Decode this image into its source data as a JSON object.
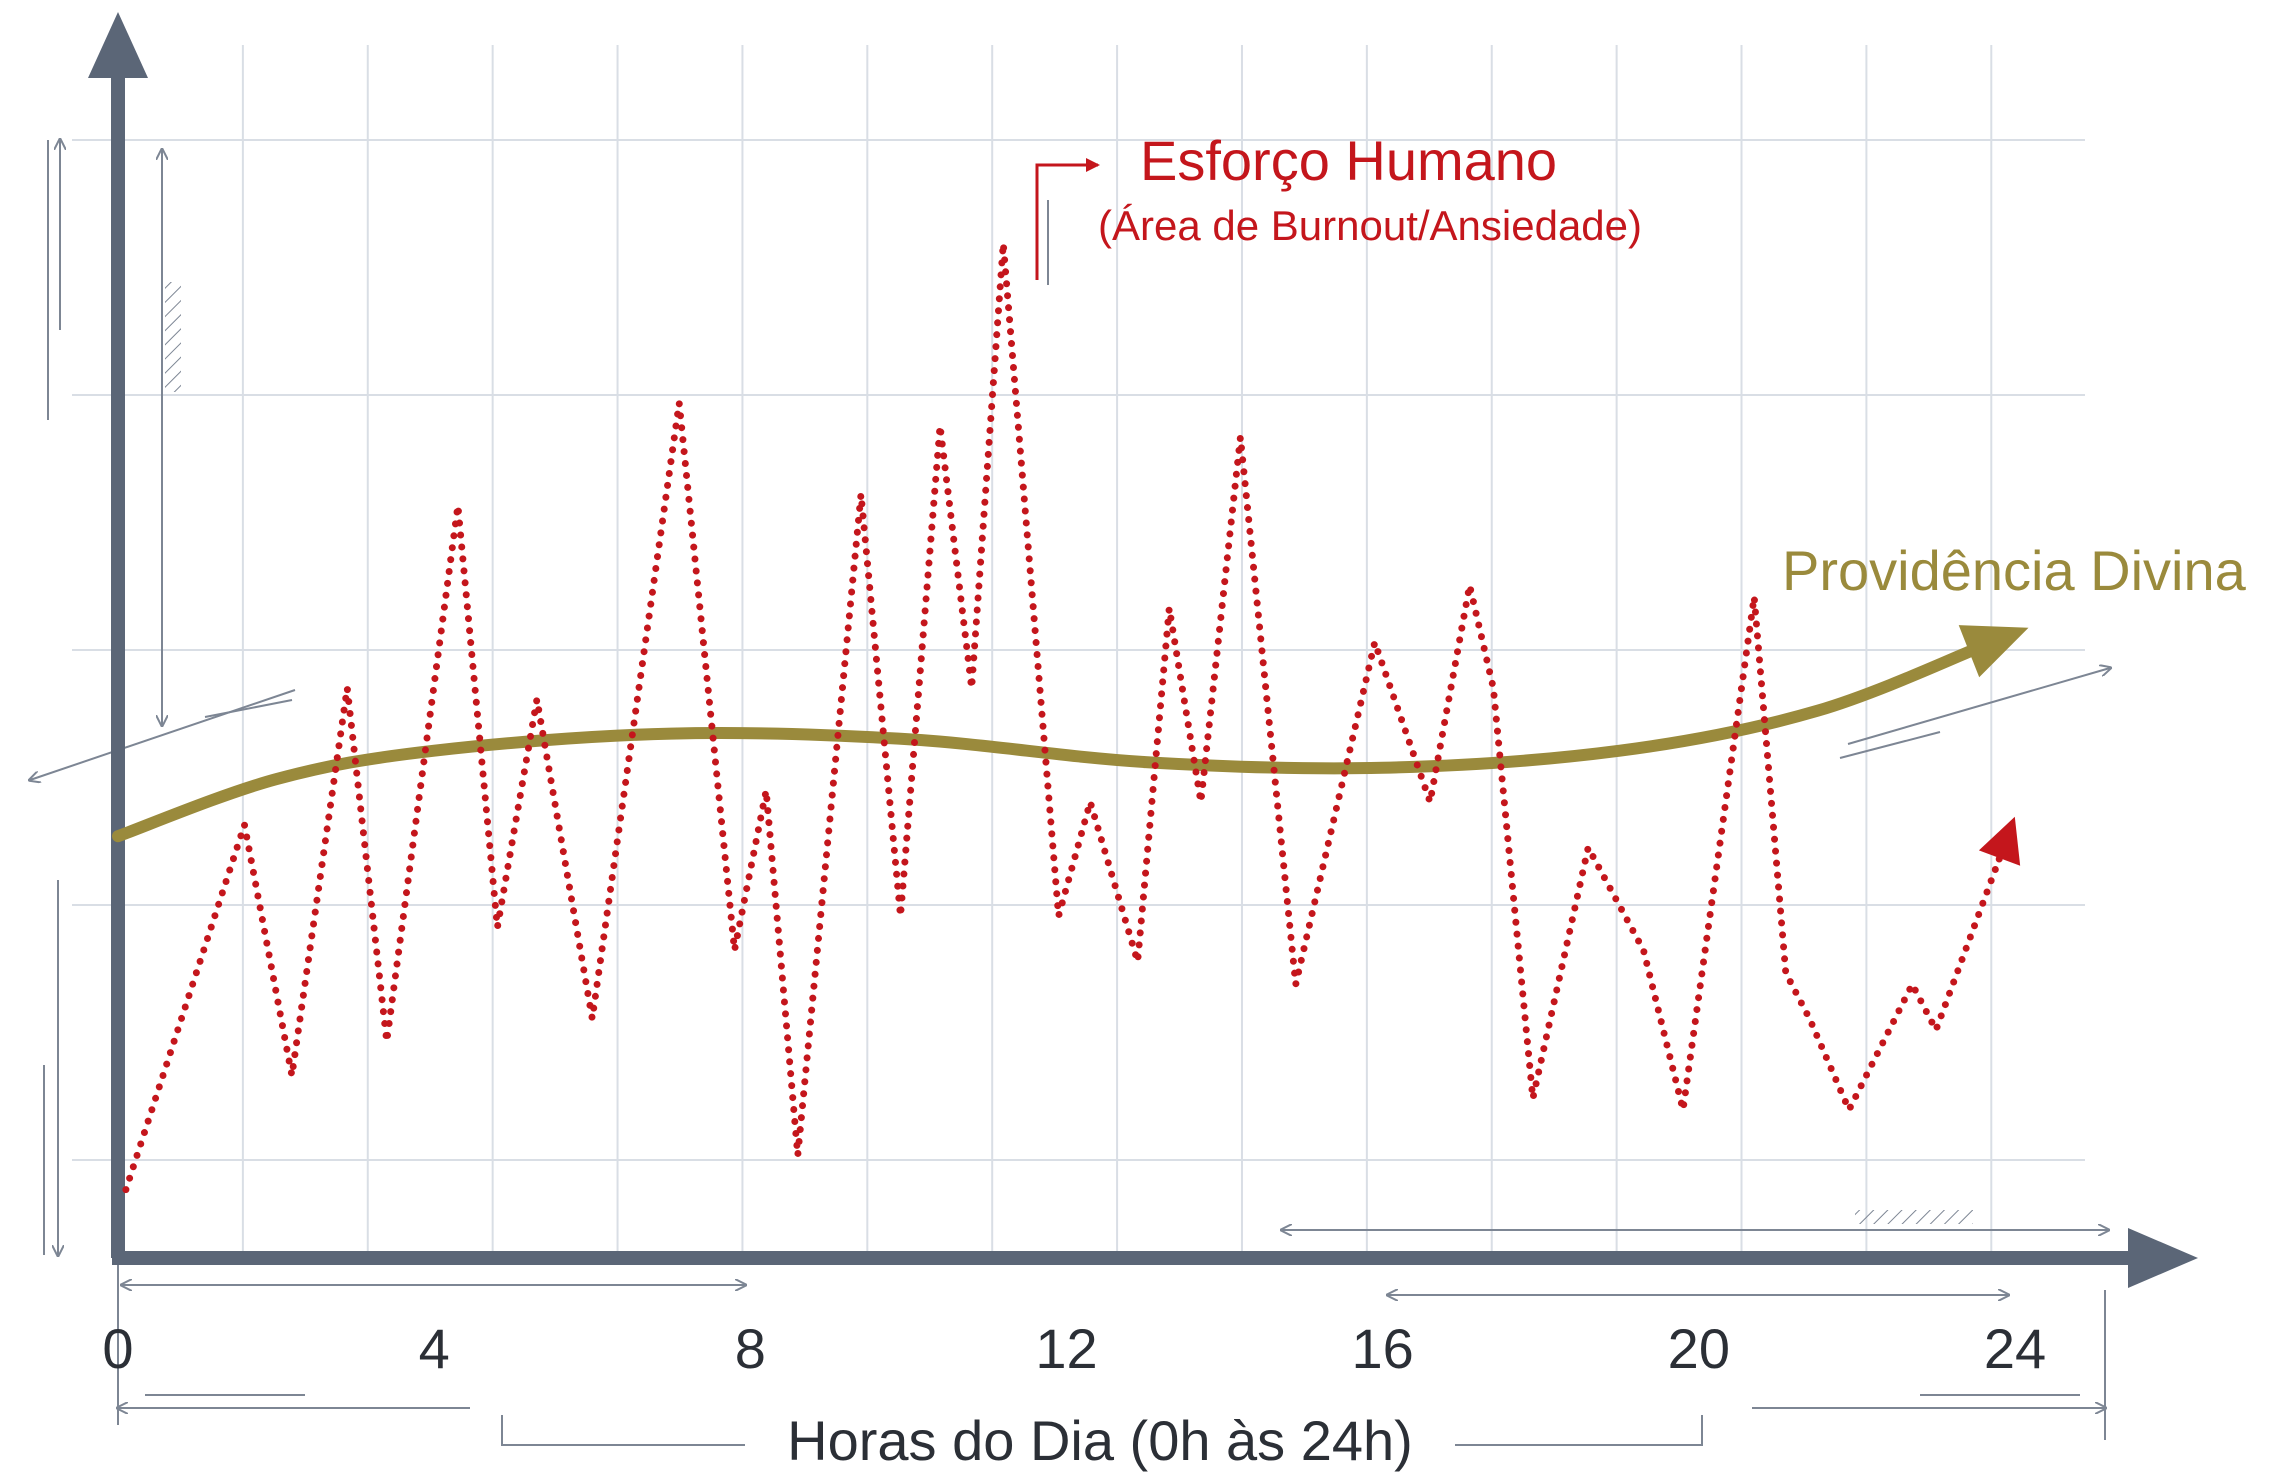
{
  "chart_data": {
    "type": "line",
    "title": "",
    "xlabel": "Horas do Dia (0h às 24h)",
    "ylabel": "",
    "xlim": [
      0,
      24
    ],
    "x_ticks": [
      "0",
      "4",
      "8",
      "12",
      "16",
      "20",
      "24"
    ],
    "grid": true,
    "annotations": {
      "human_effort_title": "Esforço Humano",
      "human_effort_subtitle": "(Área de Burnout/Ansiedade)",
      "divine_providence": "Providência Divina"
    },
    "series": [
      {
        "name": "Esforço Humano",
        "style": "dotted",
        "color": "#c4161c",
        "points": [
          [
            0.1,
            6
          ],
          [
            1.6,
            38
          ],
          [
            2.2,
            16
          ],
          [
            2.9,
            50
          ],
          [
            3.4,
            19
          ],
          [
            4.3,
            66
          ],
          [
            4.8,
            29
          ],
          [
            5.3,
            49
          ],
          [
            6.0,
            21
          ],
          [
            7.1,
            75
          ],
          [
            7.8,
            27
          ],
          [
            8.2,
            41
          ],
          [
            8.6,
            9
          ],
          [
            9.4,
            67
          ],
          [
            9.9,
            30
          ],
          [
            10.4,
            73
          ],
          [
            10.8,
            50
          ],
          [
            11.2,
            89
          ],
          [
            11.9,
            30
          ],
          [
            12.3,
            40
          ],
          [
            12.9,
            26
          ],
          [
            13.3,
            57
          ],
          [
            13.7,
            40
          ],
          [
            14.2,
            72
          ],
          [
            14.9,
            24
          ],
          [
            15.9,
            54
          ],
          [
            16.6,
            40
          ],
          [
            17.1,
            59
          ],
          [
            17.4,
            50
          ],
          [
            17.9,
            14
          ],
          [
            18.6,
            36
          ],
          [
            19.3,
            27
          ],
          [
            19.8,
            13
          ],
          [
            20.7,
            58
          ],
          [
            21.1,
            25
          ],
          [
            21.4,
            21
          ],
          [
            21.9,
            13
          ],
          [
            22.7,
            24
          ],
          [
            23.0,
            20
          ],
          [
            23.8,
            35
          ]
        ]
      },
      {
        "name": "Providência Divina",
        "style": "solid",
        "color": "#9a8a3c",
        "points": [
          [
            0.0,
            37
          ],
          [
            2.0,
            42
          ],
          [
            4.0,
            44.5
          ],
          [
            7.0,
            46
          ],
          [
            10.0,
            45.5
          ],
          [
            13.0,
            43.5
          ],
          [
            16.0,
            43
          ],
          [
            19.0,
            44.5
          ],
          [
            21.5,
            48
          ],
          [
            23.7,
            54
          ]
        ]
      }
    ]
  },
  "colors": {
    "axis": "#5b6677",
    "grid": "#d9dee5",
    "effort": "#c4161c",
    "providence": "#9a8a3c",
    "dimension_lines": "#7d8694"
  }
}
